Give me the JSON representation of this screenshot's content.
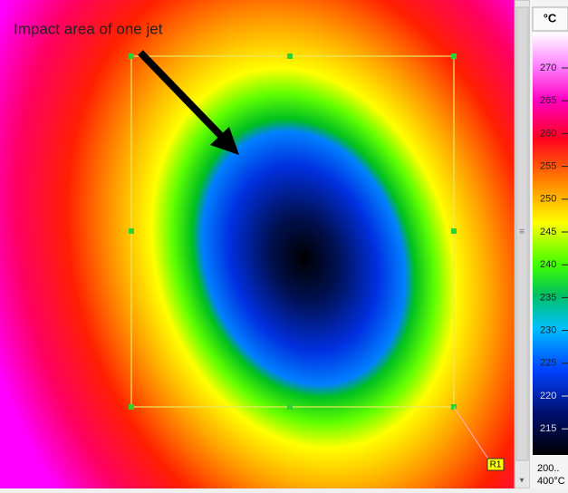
{
  "image": {
    "annotation": "Impact area of one jet",
    "roi_label": "R1"
  },
  "colorbar": {
    "unit": "°C",
    "ticks": [
      270,
      265,
      260,
      255,
      250,
      245,
      240,
      235,
      230,
      225,
      220,
      215
    ],
    "range_low": "200..",
    "range_high": "400°C"
  }
}
